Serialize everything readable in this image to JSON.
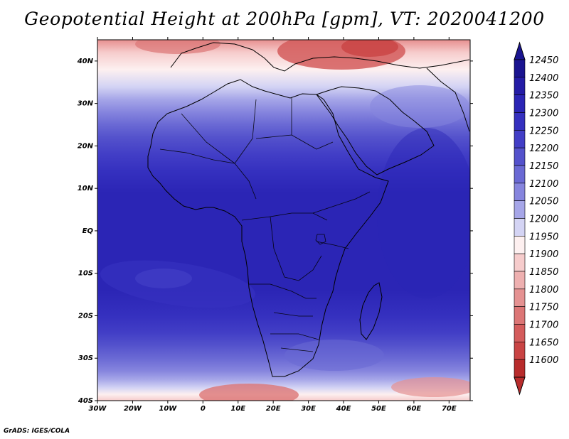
{
  "title": "Geopotential Height at 200hPa [gpm], VT: 2020041200",
  "credit": "GrADS: IGES/COLA",
  "map": {
    "lon_range": [
      -30,
      76
    ],
    "lat_range": [
      -40,
      45
    ],
    "lon_ticks": [
      {
        "value": -30,
        "label": "30W"
      },
      {
        "value": -20,
        "label": "20W"
      },
      {
        "value": -10,
        "label": "10W"
      },
      {
        "value": 0,
        "label": "0"
      },
      {
        "value": 10,
        "label": "10E"
      },
      {
        "value": 20,
        "label": "20E"
      },
      {
        "value": 30,
        "label": "30E"
      },
      {
        "value": 40,
        "label": "40E"
      },
      {
        "value": 50,
        "label": "50E"
      },
      {
        "value": 60,
        "label": "60E"
      },
      {
        "value": 70,
        "label": "70E"
      }
    ],
    "lat_ticks": [
      {
        "value": 40,
        "label": "40N"
      },
      {
        "value": 30,
        "label": "30N"
      },
      {
        "value": 20,
        "label": "20N"
      },
      {
        "value": 10,
        "label": "10N"
      },
      {
        "value": 0,
        "label": "EQ"
      },
      {
        "value": -10,
        "label": "10S"
      },
      {
        "value": -20,
        "label": "20S"
      },
      {
        "value": -30,
        "label": "30S"
      },
      {
        "value": -40,
        "label": "40S"
      }
    ]
  },
  "colorbar": {
    "levels": [
      {
        "label": "12450",
        "color": "#1a1490"
      },
      {
        "label": "12400",
        "color": "#241ca6"
      },
      {
        "label": "12350",
        "color": "#2b25b5"
      },
      {
        "label": "12300",
        "color": "#3530bf"
      },
      {
        "label": "12250",
        "color": "#423ec6"
      },
      {
        "label": "12200",
        "color": "#5452cc"
      },
      {
        "label": "12150",
        "color": "#6a69d4"
      },
      {
        "label": "12100",
        "color": "#8685de"
      },
      {
        "label": "12050",
        "color": "#a6a6e8"
      },
      {
        "label": "12000",
        "color": "#d4d4f4"
      },
      {
        "label": "11950",
        "color": "#fdf0f0"
      },
      {
        "label": "11900",
        "color": "#f6cccc"
      },
      {
        "label": "11850",
        "color": "#eeb0b0"
      },
      {
        "label": "11800",
        "color": "#e59292"
      },
      {
        "label": "11750",
        "color": "#dc7676"
      },
      {
        "label": "11700",
        "color": "#d45c5c"
      },
      {
        "label": "11650",
        "color": "#c94444"
      },
      {
        "label": "11600",
        "color": "#b82c2c"
      }
    ],
    "top_arrow_color": "#1a1490",
    "bottom_arrow_color": "#b82c2c"
  },
  "field_bands": [
    {
      "lat": 45,
      "color": "#e78f8f"
    },
    {
      "lat": 42,
      "color": "#f6cccc"
    },
    {
      "lat": 38,
      "color": "#fdf0f0"
    },
    {
      "lat": 34,
      "color": "#d4d4f4"
    },
    {
      "lat": 31,
      "color": "#a6a6e8"
    },
    {
      "lat": 28,
      "color": "#8685de"
    },
    {
      "lat": 25,
      "color": "#6a69d4"
    },
    {
      "lat": 22,
      "color": "#5452cc"
    },
    {
      "lat": 18,
      "color": "#423ec6"
    },
    {
      "lat": 14,
      "color": "#3530bf"
    },
    {
      "lat": 9,
      "color": "#2b25b5"
    },
    {
      "lat": -14,
      "color": "#2b25b5"
    },
    {
      "lat": -20,
      "color": "#3530bf"
    },
    {
      "lat": -24,
      "color": "#423ec6"
    },
    {
      "lat": -27,
      "color": "#5452cc"
    },
    {
      "lat": -30,
      "color": "#6a69d4"
    },
    {
      "lat": -33,
      "color": "#8685de"
    },
    {
      "lat": -35,
      "color": "#a6a6e8"
    },
    {
      "lat": -37,
      "color": "#d4d4f4"
    },
    {
      "lat": -38.5,
      "color": "#fdf0f0"
    },
    {
      "lat": -40,
      "color": "#f6cccc"
    }
  ]
}
